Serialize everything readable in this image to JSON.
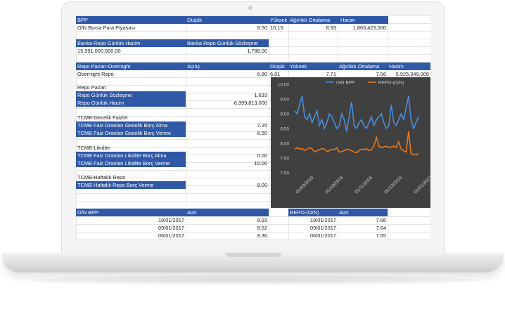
{
  "bpp": {
    "headers": [
      "BPP",
      "Düşük",
      "Yüksek",
      "Ağırlıklı Ortalama",
      "Hacim"
    ],
    "row": {
      "label": "O/N Borsa Para Piyasası",
      "low": "8.50",
      "high": "10.15",
      "avg": "8.93",
      "volume": "1,863,423,000"
    }
  },
  "bank_repo": {
    "headers": [
      "Banka Repo Günlük Hacim",
      "Banka Repo Günlük Sözleşme"
    ],
    "volume": "15,991,000,000.00",
    "contracts": "1,788.00"
  },
  "repo_market": {
    "headers": [
      "Repo Pazarı-Overnight",
      "Açılış",
      "Düşük",
      "Yüksek",
      "Ağırlıklı Ortalama",
      "Hacim"
    ],
    "row": {
      "label": "Overnight Repo",
      "open": "6.80",
      "low": "6.01",
      "high": "7.71",
      "avg": "7.66",
      "volume": "5,925,349,000"
    }
  },
  "repo_pazari": {
    "title": "Repo Pazarı",
    "rows": [
      {
        "label": "Repo Günlük Sözleşme",
        "value": "1,633"
      },
      {
        "label": "Repo Günlük Hacim",
        "value": "6,399,813,000"
      }
    ]
  },
  "tcmb_overnight": {
    "title": "TCMB-Gecelik Faizler",
    "rows": [
      {
        "label": "TCMB Faiz Oranları Gecelik Borç Alma",
        "value": "7.25"
      },
      {
        "label": "TCMB Faiz Oranları Gecelik Borç Verme",
        "value": "8.50"
      }
    ]
  },
  "tcmb_liquidity": {
    "title": "TCMB-Likidite",
    "rows": [
      {
        "label": "TCMB Faiz Oranları Likidite Borç Alma",
        "value": "0.00"
      },
      {
        "label": "TCMB Faiz Oranları Likidite Borç Verme",
        "value": "10.00"
      }
    ]
  },
  "tcmb_weekly": {
    "title": "TCMB-Haftalık Repo",
    "rows": [
      {
        "label": "TCMB Haftalık Repo Borç Verme",
        "value": "8.00"
      }
    ]
  },
  "on_bpp_table": {
    "headers": [
      "O/N BPP",
      "Aort"
    ],
    "rows": [
      [
        "10/01/2017",
        "8.93"
      ],
      [
        "09/01/2017",
        "8.52"
      ],
      [
        "06/01/2017",
        "8.36"
      ]
    ]
  },
  "repo_on_table": {
    "headers": [
      "REPO-(O/N)",
      "Aort"
    ],
    "rows": [
      [
        "10/01/2017",
        "7.66"
      ],
      [
        "09/01/2017",
        "7.64"
      ],
      [
        "06/01/2017",
        "7.65"
      ]
    ]
  },
  "colors": {
    "header_blue": "#2f58a6",
    "chart_bg": "#404040",
    "series_blue": "#4a90e2",
    "series_orange": "#f07a1a"
  },
  "chart_data": {
    "type": "line",
    "legend_position": "top",
    "ylim": [
      7.0,
      10.0
    ],
    "yticks": [
      "10.00",
      "9.50",
      "9.00",
      "8.50",
      "8.00",
      "7.50",
      "7.00"
    ],
    "xticks": [
      "01/09/2016",
      "01/10/2016",
      "01/11/2016",
      "01/12/2016",
      "01/01/2017"
    ],
    "series": [
      {
        "name": "O/N BPP",
        "color": "#4a90e2",
        "values": [
          9.1,
          9.0,
          9.3,
          9.6,
          8.9,
          8.8,
          9.0,
          8.7,
          8.9,
          9.1,
          8.6,
          8.8,
          8.5,
          8.7,
          9.0,
          8.9,
          8.7,
          8.5,
          8.6,
          9.0,
          8.8,
          8.4,
          8.9,
          9.4,
          8.6,
          8.5,
          8.7,
          8.8,
          8.6,
          8.5,
          8.7,
          8.9,
          8.6,
          8.8,
          8.9,
          9.0,
          8.7,
          8.5,
          8.6,
          9.3,
          8.7,
          8.6,
          8.8,
          9.0,
          8.8,
          9.2,
          9.6,
          8.8,
          8.5,
          8.7,
          8.9
        ]
      },
      {
        "name": "REPO-(O/N)",
        "color": "#f07a1a",
        "values": [
          7.8,
          7.85,
          7.8,
          7.82,
          7.75,
          7.8,
          7.85,
          7.82,
          7.7,
          7.75,
          7.78,
          7.82,
          7.8,
          7.72,
          7.75,
          7.8,
          7.78,
          7.85,
          7.7,
          7.72,
          7.75,
          7.8,
          7.78,
          7.75,
          7.7,
          7.68,
          7.75,
          7.8,
          7.78,
          7.82,
          7.75,
          7.78,
          7.9,
          8.2,
          7.9,
          7.85,
          7.88,
          7.9,
          7.85,
          7.88,
          7.9,
          7.85,
          8.05,
          7.8,
          7.75,
          7.7,
          8.4,
          7.65,
          7.62,
          7.6,
          7.66
        ]
      }
    ]
  }
}
